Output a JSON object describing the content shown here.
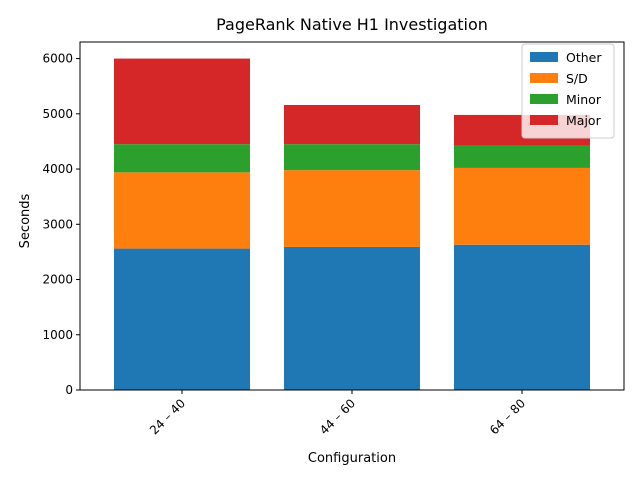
{
  "chart_data": {
    "type": "bar",
    "stacked": true,
    "title": "PageRank Native H1 Investigation",
    "xlabel": "Configuration",
    "ylabel": "Seconds",
    "categories": [
      "24 – 40",
      "44 – 60",
      "64 – 80"
    ],
    "ylim": [
      0,
      6300
    ],
    "yticks": [
      0,
      1000,
      2000,
      3000,
      4000,
      5000,
      6000
    ],
    "grid": false,
    "legend_position": "top-right",
    "series": [
      {
        "name": "Other",
        "color": "#1f77b4",
        "values": [
          2560,
          2590,
          2630
        ]
      },
      {
        "name": "S/D",
        "color": "#ff7f0e",
        "values": [
          1380,
          1390,
          1390
        ]
      },
      {
        "name": "Minor",
        "color": "#2ca02c",
        "values": [
          510,
          470,
          400
        ]
      },
      {
        "name": "Major",
        "color": "#d62728",
        "values": [
          1550,
          710,
          560
        ]
      }
    ]
  }
}
